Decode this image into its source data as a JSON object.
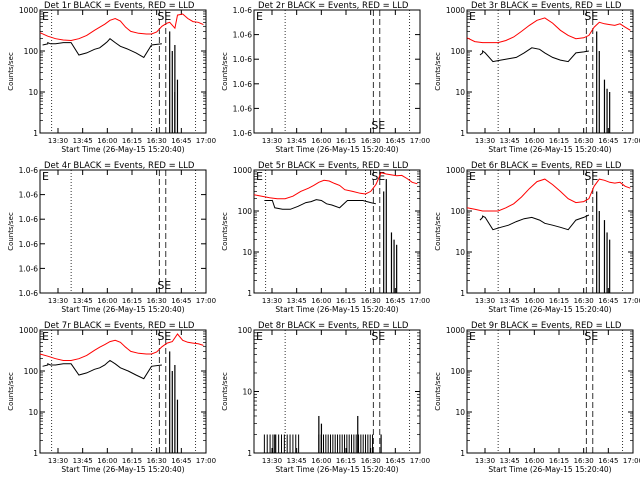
{
  "colors": {
    "events": "#000000",
    "lld": "#ff0000",
    "background": "#ffffff"
  },
  "common": {
    "ylabel": "Counts/sec",
    "x_ticks": [
      "13:30",
      "13:45",
      "16:00",
      "16:15",
      "16:30",
      "16:45",
      "17:00"
    ],
    "xlabel": "Start Time (26-May-15 15:20:40)",
    "markers": {
      "E": "E",
      "S": "S",
      "SE": "SE"
    }
  },
  "chart_data": [
    {
      "type": "line",
      "title": "Det 1r BLACK = Events, RED = LLD",
      "y_ticks": [
        "1000",
        "100",
        "10",
        "1"
      ],
      "ylim": [
        1,
        1000
      ],
      "ylabel": "Counts/sec",
      "xlabel": "Start Time (26-May-15 15:20:40)",
      "x_ticks": [
        "13:30",
        "13:45",
        "16:00",
        "16:15",
        "16:30",
        "16:45",
        "17:00"
      ],
      "series": [
        {
          "color": "red",
          "x": [
            0,
            3,
            6,
            9,
            12,
            15,
            18,
            21,
            23,
            25,
            27,
            29,
            31,
            33,
            35,
            38,
            41,
            43,
            45,
            47,
            49,
            50,
            52,
            53,
            55,
            57,
            59,
            61,
            63
          ],
          "y": [
            280,
            230,
            200,
            185,
            180,
            200,
            240,
            320,
            380,
            450,
            560,
            620,
            540,
            380,
            300,
            270,
            260,
            260,
            290,
            400,
            480,
            500,
            360,
            750,
            800,
            620,
            520,
            500,
            440
          ]
        },
        {
          "color": "black",
          "x": [
            1,
            3,
            3,
            4,
            6,
            9,
            12,
            15,
            18,
            21,
            23,
            25,
            26,
            27,
            29,
            31,
            34,
            37,
            40,
            43,
            47
          ],
          "y": [
            140,
            150,
            160,
            150,
            150,
            160,
            160,
            80,
            90,
            110,
            120,
            150,
            170,
            200,
            160,
            130,
            110,
            90,
            70,
            140,
            150
          ]
        }
      ],
      "spikes": [
        [
          50,
          1,
          300
        ],
        [
          51,
          1,
          100
        ],
        [
          52,
          1,
          140
        ],
        [
          52,
          1,
          10
        ],
        [
          53,
          1,
          20
        ]
      ],
      "vlines": {
        "dotted": [
          4.5,
          43,
          60
        ],
        "dashed": [
          46,
          48.5
        ]
      },
      "markers": {
        "E": true,
        "S": false,
        "SE": true
      }
    },
    {
      "type": "line",
      "title": "Det 2r BLACK = Events, RED = LLD",
      "y_ticks": [
        "1.0-6",
        "1.0-6",
        "1.0-6",
        "1.0-6",
        "1.0-6",
        "1.0-6"
      ],
      "ylim": [
        0,
        1
      ],
      "ylabel": "Counts/sec",
      "xlabel": "Start Time (26-May-15 15:20:40)",
      "x_ticks": [
        "13:30",
        "13:45",
        "16:00",
        "16:15",
        "16:30",
        "16:45",
        "17:00"
      ],
      "series": [],
      "vlines": {
        "dotted": [
          12,
          60
        ],
        "dashed": [
          46,
          48.5
        ]
      },
      "markers": {
        "E": true,
        "S": false,
        "SE": true
      }
    },
    {
      "type": "line",
      "title": "Det 3r BLACK = Events, RED = LLD",
      "y_ticks": [
        "1000",
        "100",
        "10",
        "1"
      ],
      "ylim": [
        1,
        1000
      ],
      "ylabel": "Counts/sec",
      "xlabel": "Start Time (26-May-15 15:20:40)",
      "x_ticks": [
        "13:30",
        "13:45",
        "16:00",
        "16:15",
        "16:30",
        "16:45",
        "17:00"
      ],
      "series": [
        {
          "color": "red",
          "x": [
            0,
            3,
            6,
            9,
            12,
            15,
            18,
            21,
            24,
            27,
            30,
            33,
            36,
            39,
            42,
            45,
            47,
            49,
            51,
            53,
            55,
            57,
            59,
            61,
            63
          ],
          "y": [
            210,
            170,
            160,
            160,
            160,
            180,
            220,
            300,
            420,
            560,
            640,
            480,
            320,
            240,
            200,
            210,
            240,
            380,
            500,
            460,
            440,
            420,
            460,
            380,
            320
          ]
        },
        {
          "color": "black",
          "x": [
            5,
            6,
            6,
            7,
            10,
            13,
            16,
            19,
            22,
            25,
            28,
            30,
            33,
            36,
            39,
            42,
            45,
            47
          ],
          "y": [
            80,
            90,
            100,
            90,
            55,
            60,
            65,
            70,
            90,
            120,
            110,
            90,
            70,
            60,
            55,
            90,
            95,
            100
          ]
        }
      ],
      "spikes": [
        [
          50,
          1,
          300
        ],
        [
          51,
          1,
          100
        ],
        [
          53,
          1,
          20
        ],
        [
          54,
          1,
          12
        ],
        [
          55,
          1,
          10
        ]
      ],
      "vlines": {
        "dotted": [
          12,
          60
        ],
        "dashed": [
          46,
          48.5
        ]
      },
      "markers": {
        "E": true,
        "S": false,
        "SE": true
      }
    },
    {
      "type": "line",
      "title": "Det 4r BLACK = Events, RED = LLD",
      "y_ticks": [
        "1.0-6",
        "1.0-6",
        "1.0-6",
        "1.0-6",
        "1.0-6",
        "1.0-6"
      ],
      "ylim": [
        0,
        1
      ],
      "ylabel": "Counts/sec",
      "xlabel": "Start Time (26-May-15 15:20:40)",
      "x_ticks": [
        "13:30",
        "13:45",
        "16:00",
        "16:15",
        "16:30",
        "16:45",
        "17:00"
      ],
      "series": [],
      "vlines": {
        "dotted": [
          12,
          60
        ],
        "dashed": [
          46,
          48.5
        ]
      },
      "markers": {
        "E": true,
        "S": false,
        "SE": true
      }
    },
    {
      "type": "line",
      "title": "Det 5r BLACK = Events, RED = LLD",
      "y_ticks": [
        "1000",
        "100",
        "10",
        "1"
      ],
      "ylim": [
        1,
        1000
      ],
      "ylabel": "Counts/sec",
      "xlabel": "Start Time (26-May-15 15:20:40)",
      "x_ticks": [
        "13:30",
        "13:45",
        "16:00",
        "16:15",
        "16:30",
        "16:45",
        "17:00"
      ],
      "series": [
        {
          "color": "red",
          "x": [
            0,
            3,
            6,
            9,
            12,
            15,
            18,
            21,
            23,
            25,
            27,
            29,
            31,
            33,
            35,
            38,
            41,
            43,
            45,
            47,
            49,
            51,
            53,
            55,
            57,
            59,
            61,
            63
          ],
          "y": [
            250,
            230,
            210,
            200,
            200,
            230,
            300,
            360,
            420,
            500,
            560,
            540,
            470,
            420,
            330,
            300,
            270,
            260,
            300,
            440,
            860,
            800,
            760,
            720,
            740,
            620,
            500,
            460
          ]
        },
        {
          "color": "black",
          "x": [
            4,
            7,
            7,
            8,
            11,
            14,
            17,
            20,
            22,
            24,
            26,
            28,
            30,
            33,
            36,
            39,
            42,
            45,
            47
          ],
          "y": [
            180,
            180,
            185,
            120,
            110,
            110,
            130,
            160,
            170,
            190,
            180,
            150,
            140,
            120,
            180,
            180,
            180,
            160,
            150
          ]
        }
      ],
      "spikes": [
        [
          50,
          1,
          300
        ],
        [
          51,
          1,
          600
        ],
        [
          53,
          1,
          30
        ],
        [
          54,
          1,
          20
        ],
        [
          55,
          1,
          15
        ]
      ],
      "vlines": {
        "dotted": [
          4.5,
          43,
          60
        ],
        "dashed": [
          46,
          48.5
        ]
      },
      "markers": {
        "E": true,
        "S": false,
        "SE": true
      }
    },
    {
      "type": "line",
      "title": "Det 6r BLACK = Events, RED = LLD",
      "y_ticks": [
        "1000",
        "100",
        "10",
        "1"
      ],
      "ylim": [
        1,
        1000
      ],
      "ylabel": "Counts/sec",
      "xlabel": "Start Time (26-May-15 15:20:40)",
      "x_ticks": [
        "13:30",
        "13:45",
        "16:00",
        "16:15",
        "16:30",
        "16:45",
        "17:00"
      ],
      "series": [
        {
          "color": "red",
          "x": [
            0,
            3,
            6,
            9,
            12,
            15,
            18,
            21,
            24,
            27,
            30,
            33,
            36,
            39,
            42,
            45,
            47,
            49,
            51,
            53,
            55,
            57,
            59,
            61,
            63
          ],
          "y": [
            120,
            110,
            100,
            100,
            100,
            120,
            150,
            220,
            350,
            520,
            600,
            440,
            300,
            200,
            160,
            170,
            200,
            400,
            600,
            560,
            500,
            480,
            500,
            400,
            360
          ]
        },
        {
          "color": "black",
          "x": [
            5,
            6,
            6,
            7,
            10,
            13,
            16,
            19,
            22,
            25,
            28,
            30,
            33,
            36,
            39,
            42,
            45,
            47
          ],
          "y": [
            60,
            70,
            75,
            70,
            35,
            40,
            45,
            55,
            65,
            70,
            60,
            50,
            45,
            40,
            35,
            60,
            70,
            80
          ]
        }
      ],
      "spikes": [
        [
          50,
          1,
          300
        ],
        [
          51,
          1,
          100
        ],
        [
          53,
          1,
          60
        ],
        [
          54,
          1,
          30
        ],
        [
          55,
          1,
          20
        ]
      ],
      "vlines": {
        "dotted": [
          12,
          60
        ],
        "dashed": [
          46,
          48.5
        ]
      },
      "markers": {
        "E": true,
        "S": false,
        "SE": true
      }
    },
    {
      "type": "line",
      "title": "Det 7r BLACK = Events, RED = LLD",
      "y_ticks": [
        "1000",
        "100",
        "10",
        "1"
      ],
      "ylim": [
        1,
        1000
      ],
      "ylabel": "Counts/sec",
      "xlabel": "Start Time (26-May-15 15:20:40)",
      "x_ticks": [
        "13:30",
        "13:45",
        "16:00",
        "16:15",
        "16:30",
        "16:45",
        "17:00"
      ],
      "series": [
        {
          "color": "red",
          "x": [
            0,
            3,
            6,
            9,
            12,
            15,
            18,
            21,
            23,
            25,
            27,
            29,
            31,
            33,
            35,
            38,
            41,
            43,
            45,
            47,
            49,
            51,
            53,
            55,
            57,
            59,
            61,
            63
          ],
          "y": [
            260,
            230,
            200,
            180,
            180,
            200,
            240,
            320,
            380,
            440,
            520,
            560,
            500,
            380,
            300,
            270,
            260,
            260,
            290,
            390,
            480,
            520,
            800,
            560,
            500,
            480,
            460,
            420
          ]
        },
        {
          "color": "black",
          "x": [
            1,
            3,
            3,
            4,
            6,
            9,
            12,
            15,
            18,
            21,
            23,
            25,
            26,
            27,
            29,
            31,
            34,
            37,
            40,
            43,
            47
          ],
          "y": [
            130,
            140,
            150,
            140,
            140,
            150,
            150,
            80,
            90,
            110,
            120,
            140,
            160,
            180,
            150,
            120,
            100,
            80,
            65,
            130,
            140
          ]
        }
      ],
      "spikes": [
        [
          50,
          1,
          300
        ],
        [
          51,
          1,
          100
        ],
        [
          52,
          1,
          140
        ],
        [
          53,
          1,
          20
        ]
      ],
      "vlines": {
        "dotted": [
          4.5,
          43,
          60
        ],
        "dashed": [
          46,
          48.5
        ]
      },
      "markers": {
        "E": true,
        "S": false,
        "SE": true
      }
    },
    {
      "type": "line",
      "title": "Det 8r BLACK = Events, RED = LLD",
      "y_ticks": [
        "100",
        "10",
        "1"
      ],
      "ylim": [
        1,
        100
      ],
      "ylabel": "Counts/sec",
      "xlabel": "Start Time (26-May-15 15:20:40)",
      "x_ticks": [
        "13:30",
        "13:45",
        "16:00",
        "16:15",
        "16:30",
        "16:45",
        "17:00"
      ],
      "series": [],
      "spike_groups": [
        {
          "from": 4,
          "to": 18,
          "step": 1.1,
          "y": 2
        },
        {
          "from": 25,
          "to": 46,
          "step": 0.9,
          "y": 2
        }
      ],
      "spikes": [
        [
          8,
          1,
          2
        ],
        [
          25,
          1,
          4
        ],
        [
          26,
          1,
          3
        ],
        [
          40,
          1,
          4
        ],
        [
          49,
          1,
          2
        ]
      ],
      "vlines": {
        "dotted": [
          12,
          60
        ],
        "dashed": [
          46,
          48.5
        ]
      },
      "markers": {
        "E": true,
        "S": false,
        "SE": true
      }
    },
    {
      "type": "line",
      "title": "Det 9r BLACK = Events, RED = LLD",
      "y_ticks": [
        "1000",
        "100",
        "10",
        "1"
      ],
      "ylim": [
        1,
        1000
      ],
      "ylabel": "Counts/sec",
      "xlabel": "Start Time (26-May-15 15:20:40)",
      "x_ticks": [
        "13:30",
        "13:45",
        "16:00",
        "16:15",
        "16:30",
        "16:45",
        "17:00"
      ],
      "series": [],
      "vlines": {
        "dotted": [
          12,
          60
        ],
        "dashed": [
          46,
          48.5
        ]
      },
      "markers": {
        "E": true,
        "S": false,
        "SE": true
      }
    }
  ]
}
